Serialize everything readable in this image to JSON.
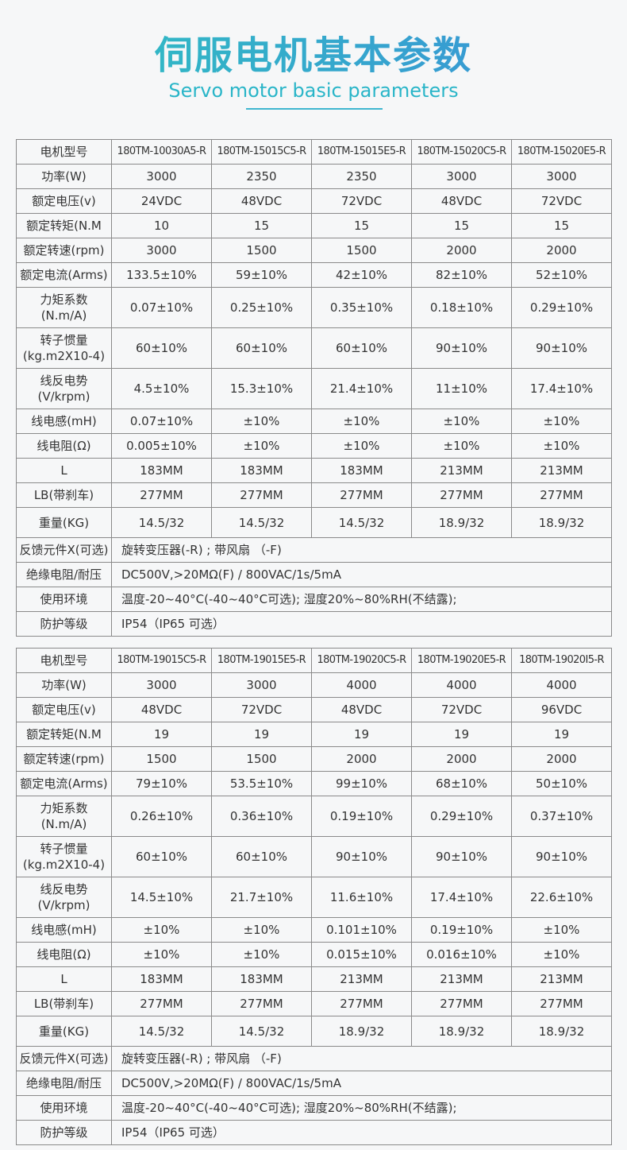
{
  "header": {
    "title": "伺服电机基本参数",
    "subtitle": "Servo motor basic parameters"
  },
  "tables": [
    {
      "rows": [
        [
          "电机型号",
          "180TM-10030A5-R",
          "180TM-15015C5-R",
          "180TM-15015E5-R",
          "180TM-15020C5-R",
          "180TM-15020E5-R"
        ],
        [
          "功率(W)",
          "3000",
          "2350",
          "2350",
          "3000",
          "3000"
        ],
        [
          "额定电压(v)",
          "24VDC",
          "48VDC",
          "72VDC",
          "48VDC",
          "72VDC"
        ],
        [
          "额定转矩(N.M",
          "10",
          "15",
          "15",
          "15",
          "15"
        ],
        [
          "额定转速(rpm)",
          "3000",
          "1500",
          "1500",
          "2000",
          "2000"
        ],
        [
          "额定电流(Arms)",
          "133.5±10%",
          "59±10%",
          "42±10%",
          "82±10%",
          "52±10%"
        ],
        [
          "力矩系数\n(N.m/A)",
          "0.07±10%",
          "0.25±10%",
          "0.35±10%",
          "0.18±10%",
          "0.29±10%"
        ],
        [
          "转子惯量\n(kg.m2X10-4)",
          "60±10%",
          "60±10%",
          "60±10%",
          "90±10%",
          "90±10%"
        ],
        [
          "线反电势\n(V/krpm)",
          "4.5±10%",
          "15.3±10%",
          "21.4±10%",
          "11±10%",
          "17.4±10%"
        ],
        [
          "线电感(mH)",
          "0.07±10%",
          "±10%",
          "±10%",
          "±10%",
          "±10%"
        ],
        [
          "线电阻(Ω)",
          "0.005±10%",
          "±10%",
          "±10%",
          "±10%",
          "±10%"
        ],
        [
          "L",
          "183MM",
          "183MM",
          "183MM",
          "213MM",
          "213MM"
        ],
        [
          "LB(带刹车)",
          "277MM",
          "277MM",
          "277MM",
          "277MM",
          "277MM"
        ],
        [
          "重量(KG)",
          "14.5/32",
          "14.5/32",
          "14.5/32",
          "18.9/32",
          "18.9/32"
        ]
      ],
      "notes": [
        [
          "反馈元件X(可选)",
          "旋转变压器(-R) ; 带风扇 （-F)"
        ],
        [
          "绝缘电阻/耐压",
          "DC500V,>20MΩ(F) / 800VAC/1s/5mA"
        ],
        [
          "使用环境",
          "温度-20~40°C(-40~40°C可选); 湿度20%~80%RH(不结露);"
        ],
        [
          "防护等级",
          "IP54（IP65 可选）"
        ]
      ]
    },
    {
      "rows": [
        [
          "电机型号",
          "180TM-19015C5-R",
          "180TM-19015E5-R",
          "180TM-19020C5-R",
          "180TM-19020E5-R",
          "180TM-19020I5-R"
        ],
        [
          "功率(W)",
          "3000",
          "3000",
          "4000",
          "4000",
          "4000"
        ],
        [
          "额定电压(v)",
          "48VDC",
          "72VDC",
          "48VDC",
          "72VDC",
          "96VDC"
        ],
        [
          "额定转矩(N.M",
          "19",
          "19",
          "19",
          "19",
          "19"
        ],
        [
          "额定转速(rpm)",
          "1500",
          "1500",
          "2000",
          "2000",
          "2000"
        ],
        [
          "额定电流(Arms)",
          "79±10%",
          "53.5±10%",
          "99±10%",
          "68±10%",
          "50±10%"
        ],
        [
          "力矩系数\n(N.m/A)",
          "0.26±10%",
          "0.36±10%",
          "0.19±10%",
          "0.29±10%",
          "0.37±10%"
        ],
        [
          "转子惯量\n(kg.m2X10-4)",
          "60±10%",
          "60±10%",
          "90±10%",
          "90±10%",
          "90±10%"
        ],
        [
          "线反电势\n(V/krpm)",
          "14.5±10%",
          "21.7±10%",
          "11.6±10%",
          "17.4±10%",
          "22.6±10%"
        ],
        [
          "线电感(mH)",
          "±10%",
          "±10%",
          "0.101±10%",
          "0.19±10%",
          "±10%"
        ],
        [
          "线电阻(Ω)",
          "±10%",
          "±10%",
          "0.015±10%",
          "0.016±10%",
          "±10%"
        ],
        [
          "L",
          "183MM",
          "183MM",
          "213MM",
          "213MM",
          "213MM"
        ],
        [
          "LB(带刹车)",
          "277MM",
          "277MM",
          "277MM",
          "277MM",
          "277MM"
        ],
        [
          "重量(KG)",
          "14.5/32",
          "14.5/32",
          "18.9/32",
          "18.9/32",
          "18.9/32"
        ]
      ],
      "notes": [
        [
          "反馈元件X(可选)",
          "旋转变压器(-R) ; 带风扇 （-F)"
        ],
        [
          "绝缘电阻/耐压",
          "DC500V,>20MΩ(F) / 800VAC/1s/5mA"
        ],
        [
          "使用环境",
          "温度-20~40°C(-40~40°C可选); 湿度20%~80%RH(不结露);"
        ],
        [
          "防护等级",
          "IP54（IP65 可选）"
        ]
      ]
    }
  ]
}
